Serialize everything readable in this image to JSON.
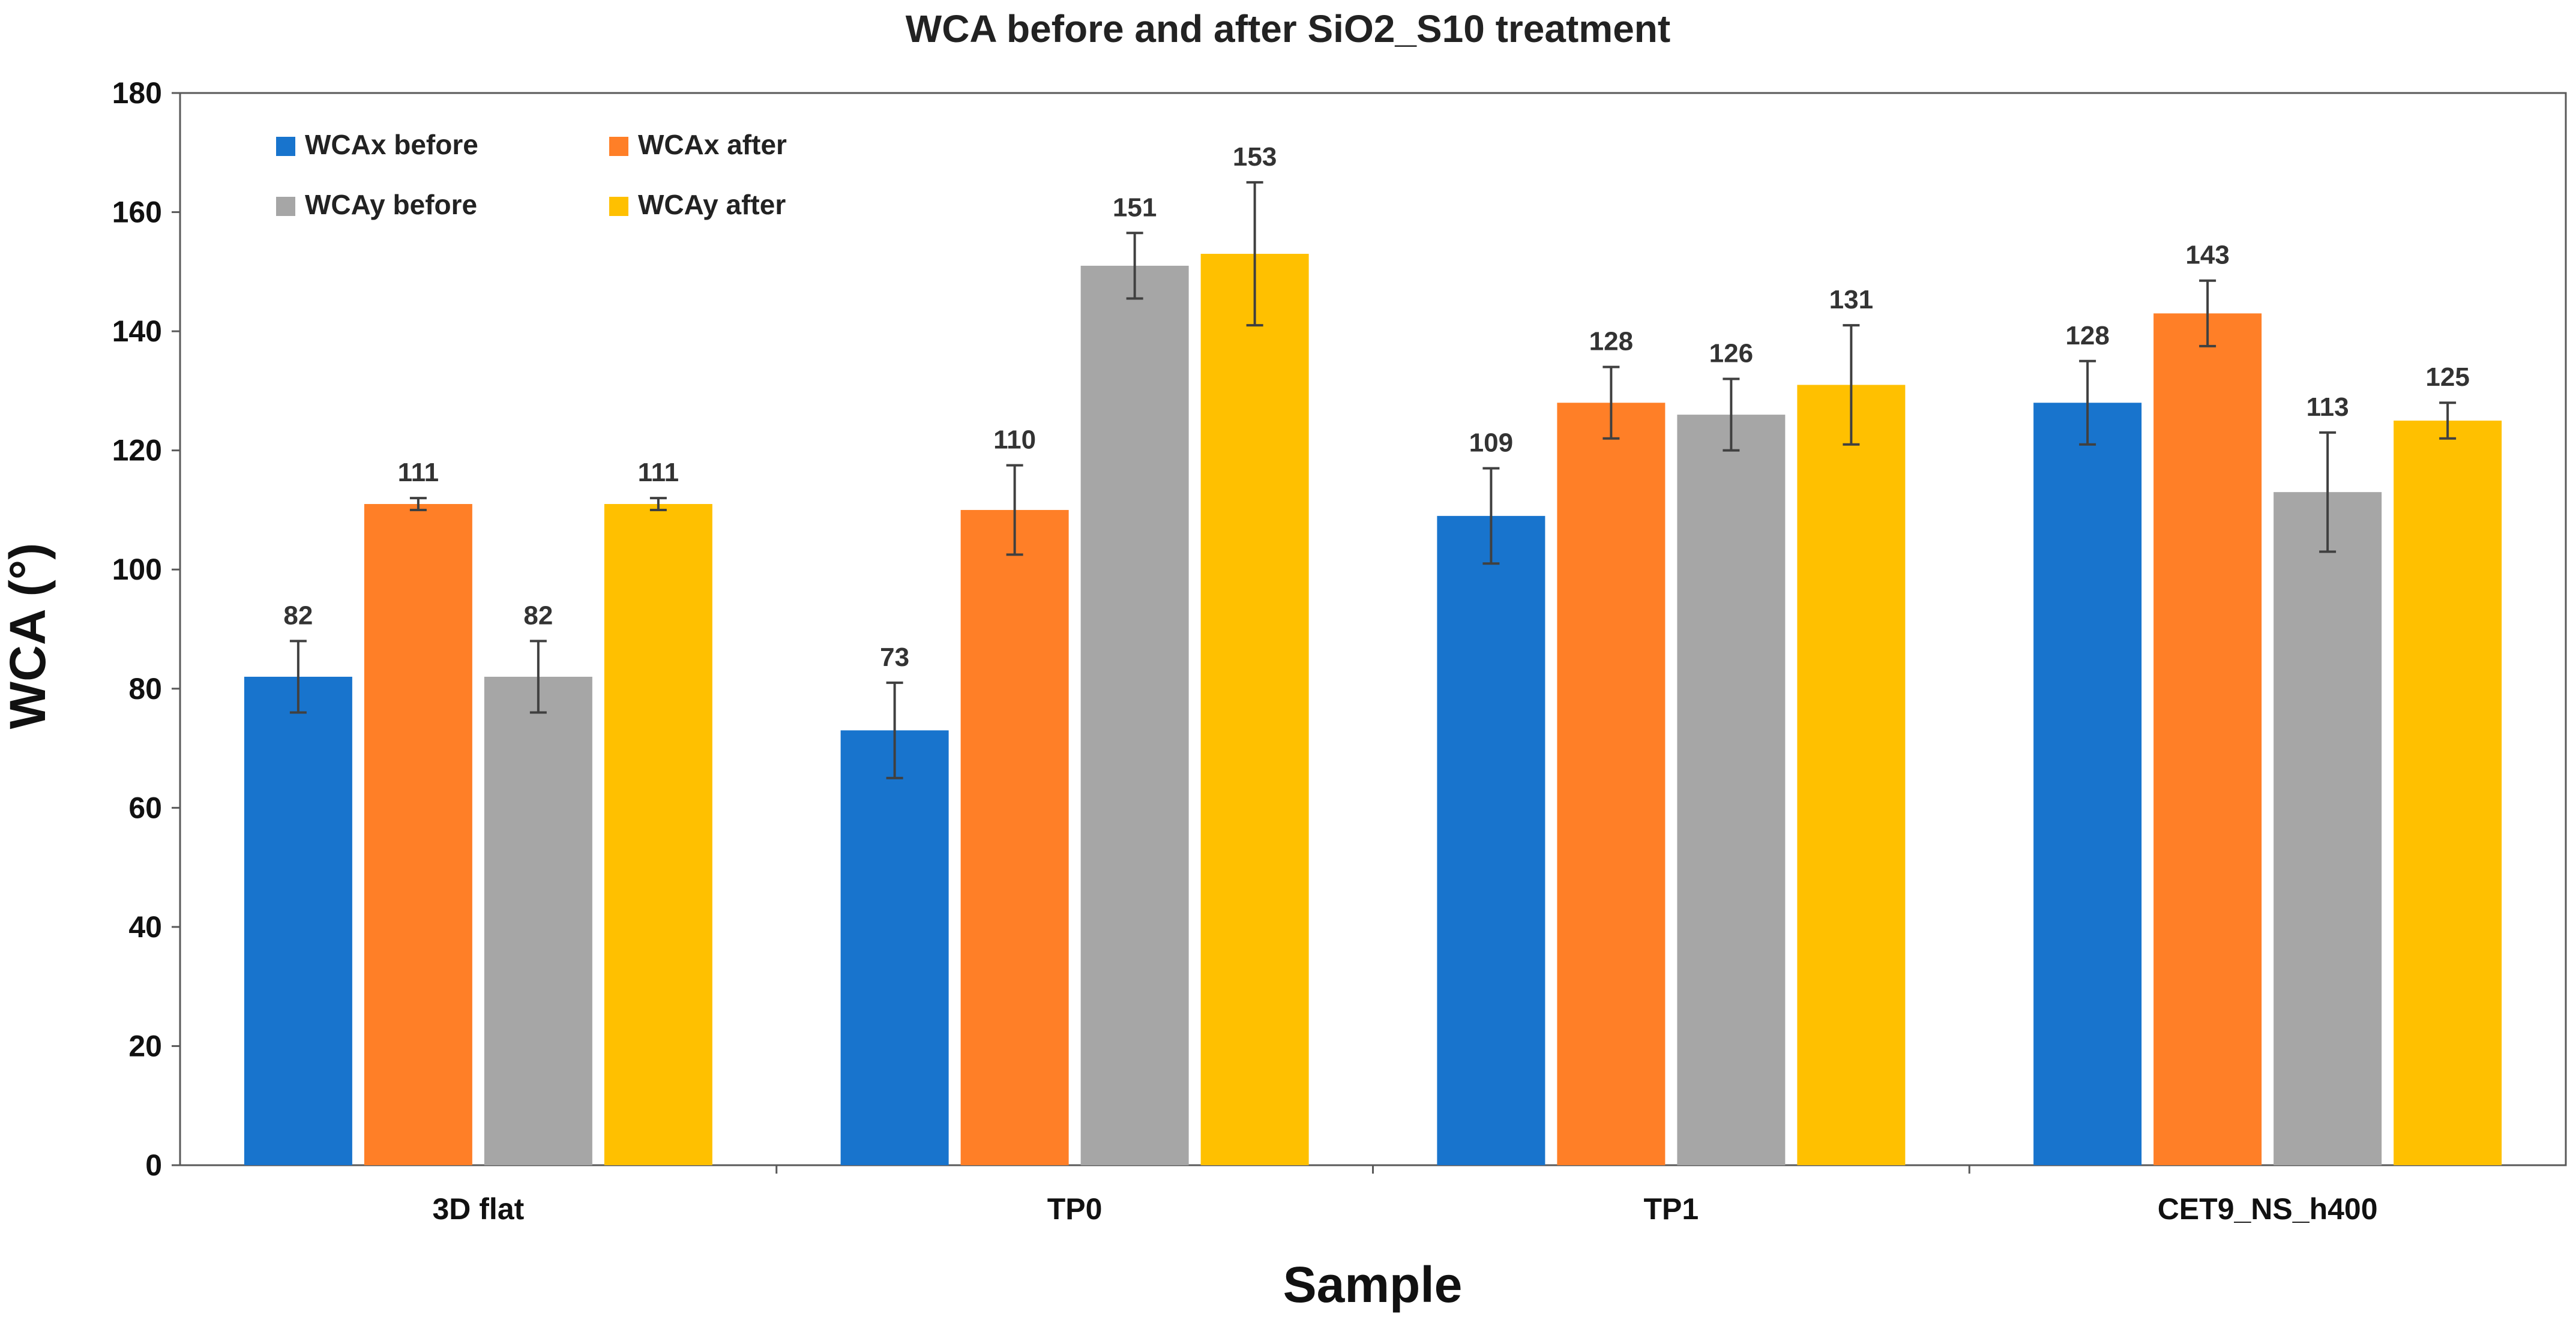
{
  "chart_data": {
    "type": "bar",
    "title": "WCA before and after SiO2_S10 treatment",
    "xlabel": "Sample",
    "ylabel": "WCA (°)",
    "ylim": [
      0,
      180
    ],
    "yticks": [
      0,
      20,
      40,
      60,
      80,
      100,
      120,
      140,
      160,
      180
    ],
    "grid": false,
    "legend_position": "top-left",
    "categories": [
      "3D flat",
      "TP0",
      "TP1",
      "CET9_NS_h400"
    ],
    "series": [
      {
        "name": "WCAx before",
        "color": "#1874CD",
        "values": [
          82,
          73,
          109,
          128
        ],
        "errors": [
          6,
          8,
          8,
          7
        ],
        "labels": [
          "82",
          "73",
          "109",
          "128"
        ]
      },
      {
        "name": "WCAx after",
        "color": "#FF7F27",
        "values": [
          111,
          110,
          128,
          143
        ],
        "errors": [
          1,
          7.5,
          6,
          5.5
        ],
        "labels": [
          "111",
          "110",
          "128",
          "143"
        ]
      },
      {
        "name": "WCAy before",
        "color": "#A6A6A6",
        "values": [
          82,
          151,
          126,
          113
        ],
        "errors": [
          6,
          5.5,
          6,
          10
        ],
        "labels": [
          "82",
          "151",
          "126",
          "113"
        ]
      },
      {
        "name": "WCAy after",
        "color": "#FFC000",
        "values": [
          111,
          153,
          131,
          125
        ],
        "errors": [
          1,
          12,
          10,
          3
        ],
        "labels": [
          "111",
          "153",
          "131",
          "125"
        ]
      }
    ]
  }
}
